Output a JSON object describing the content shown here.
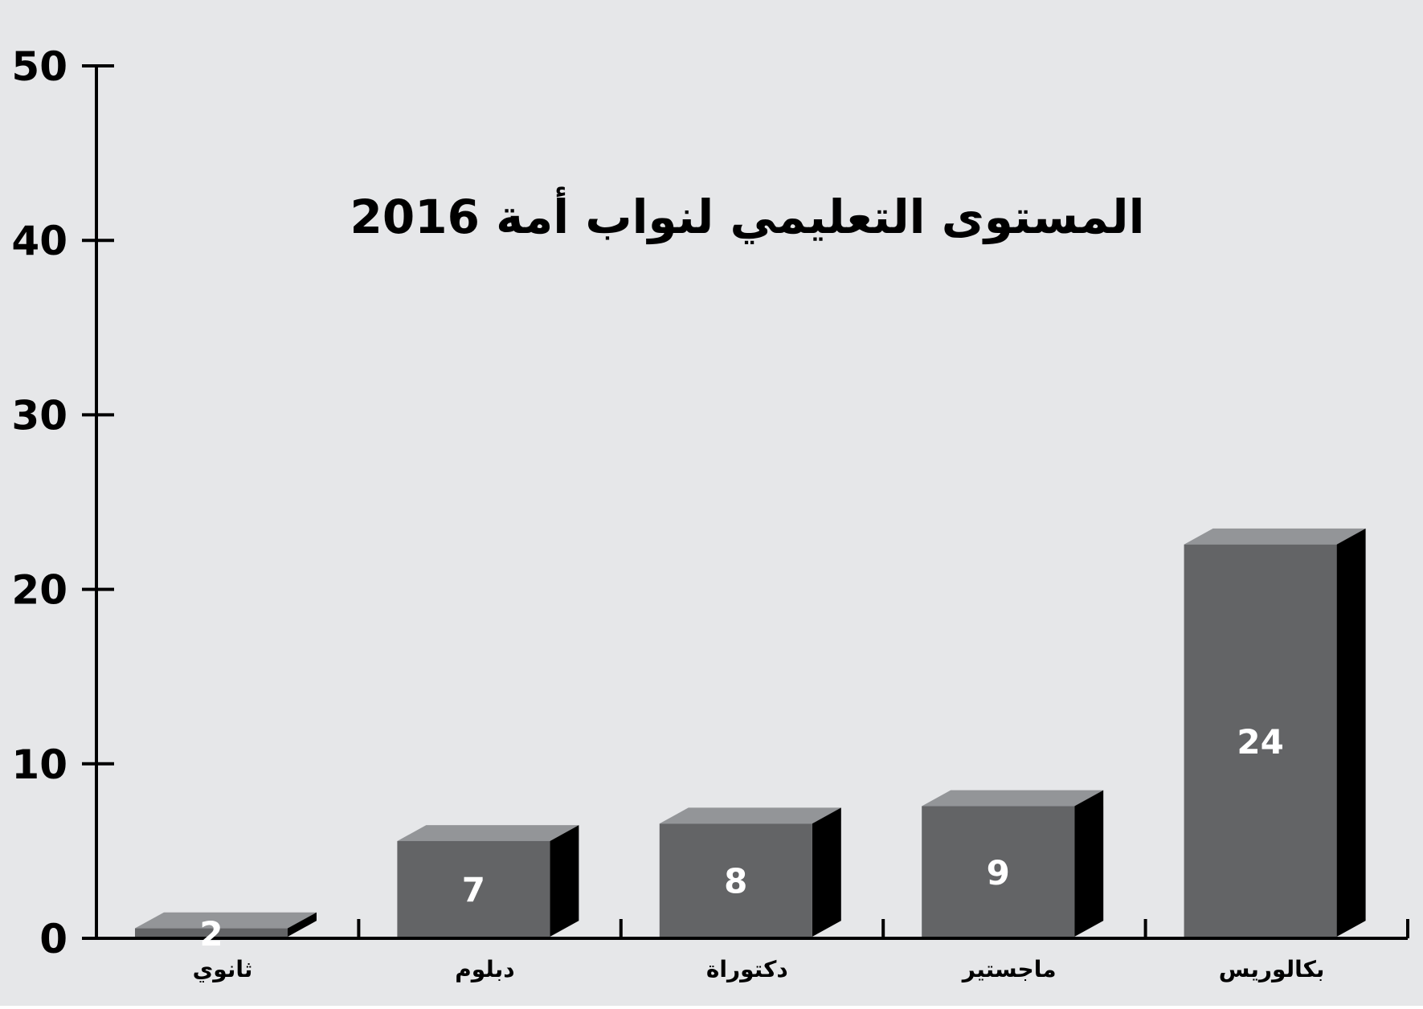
{
  "chart_data": {
    "type": "bar",
    "title": "المستوى التعليمي لنواب أمة 2016",
    "categories": [
      "ثانوي",
      "دبلوم",
      "دكتوراة",
      "ماجستير",
      "بكالوريس"
    ],
    "values": [
      2,
      7,
      8,
      9,
      24
    ],
    "ylim": [
      0,
      50
    ],
    "yticks": [
      0,
      10,
      20,
      30,
      40,
      50
    ],
    "grid": false,
    "legend": "none",
    "colors": {
      "background": "#e6e7e9",
      "bar_front": "#636466",
      "bar_top": "#939598",
      "bar_side": "#000000",
      "axis": "#000000",
      "value_label": "#ffffff"
    }
  }
}
